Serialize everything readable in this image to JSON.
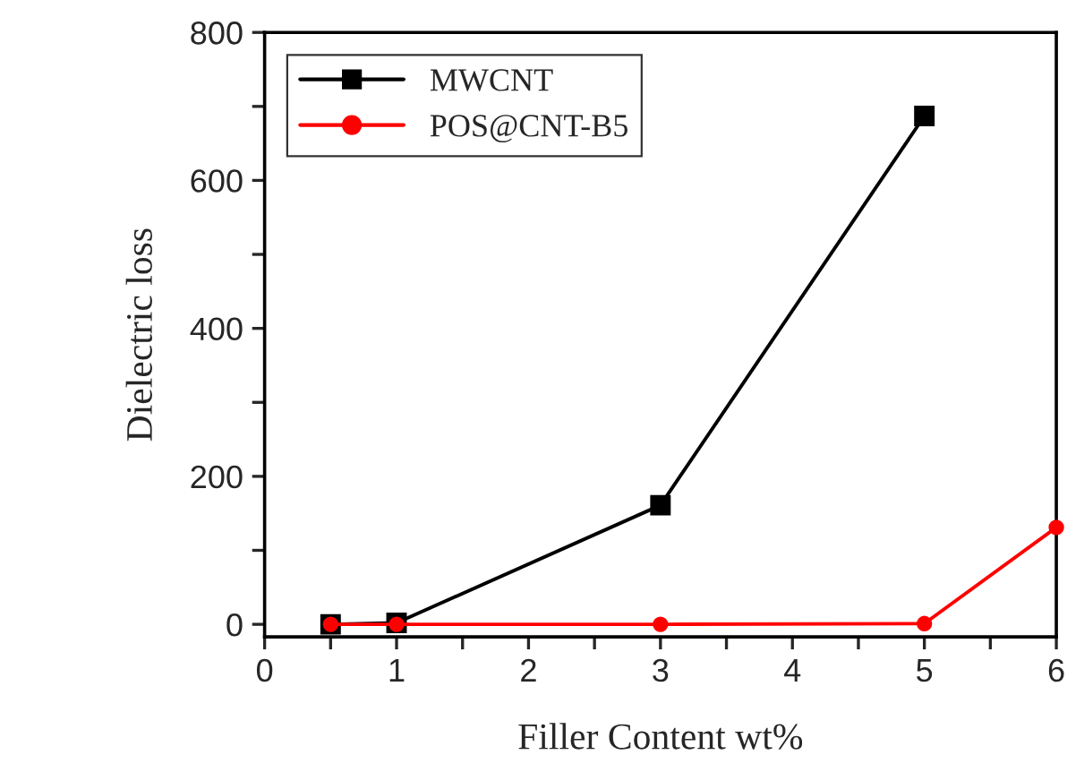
{
  "chart_data": {
    "type": "line",
    "xlabel": "Filler Content wt%",
    "ylabel": "Dielectric loss",
    "xlim": [
      0,
      6
    ],
    "ylim": [
      -17,
      800
    ],
    "xticks": [
      0,
      {
        "value": 0.5,
        "label": null
      },
      1,
      {
        "value": 1.5,
        "label": null
      },
      2,
      {
        "value": 2.5,
        "label": null
      },
      3,
      {
        "value": 3.5,
        "label": null
      },
      4,
      {
        "value": 4.5,
        "label": null
      },
      5,
      {
        "value": 5.5,
        "label": null
      },
      6
    ],
    "yticks": [
      0,
      {
        "value": 100,
        "label": null
      },
      200,
      {
        "value": 300,
        "label": null
      },
      400,
      {
        "value": 500,
        "label": null
      },
      600,
      {
        "value": 700,
        "label": null
      },
      800
    ],
    "legend": "top left",
    "grid": false,
    "series": [
      {
        "name": "MWCNT",
        "color": "#000000",
        "marker": "square",
        "x": [
          0.5,
          1,
          3,
          5
        ],
        "values": [
          0,
          2,
          161,
          687
        ]
      },
      {
        "name": "POS@CNT-B5",
        "color": "#ff0000",
        "marker": "circle",
        "x": [
          0.5,
          1,
          3,
          5,
          6
        ],
        "values": [
          0,
          0,
          0,
          1,
          131
        ]
      }
    ]
  }
}
